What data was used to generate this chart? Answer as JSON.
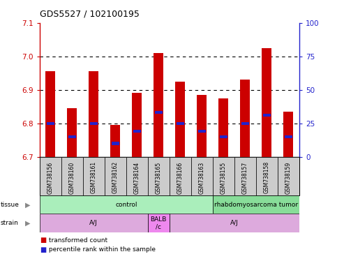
{
  "title": "GDS5527 / 102100195",
  "samples": [
    "GSM738156",
    "GSM738160",
    "GSM738161",
    "GSM738162",
    "GSM738164",
    "GSM738165",
    "GSM738166",
    "GSM738163",
    "GSM738155",
    "GSM738157",
    "GSM738158",
    "GSM738159"
  ],
  "transformed_count": [
    6.955,
    6.845,
    6.955,
    6.795,
    6.89,
    7.01,
    6.925,
    6.885,
    6.875,
    6.93,
    7.025,
    6.835
  ],
  "percentile_rank": [
    25.0,
    15.0,
    25.0,
    10.0,
    19.0,
    33.0,
    25.0,
    19.0,
    15.0,
    25.0,
    31.0,
    15.0
  ],
  "bar_base": 6.7,
  "ylim_left": [
    6.7,
    7.1
  ],
  "ylim_right": [
    0,
    100
  ],
  "yticks_left": [
    6.7,
    6.8,
    6.9,
    7.0,
    7.1
  ],
  "yticks_right": [
    0,
    25,
    50,
    75,
    100
  ],
  "red_color": "#cc0000",
  "blue_color": "#2222cc",
  "tissue_groups": [
    {
      "label": "control",
      "start": 0,
      "end": 8,
      "color": "#aaeebb"
    },
    {
      "label": "rhabdomyosarcoma tumor",
      "start": 8,
      "end": 12,
      "color": "#88dd99"
    }
  ],
  "strain_groups": [
    {
      "label": "A/J",
      "start": 0,
      "end": 5,
      "color": "#ddaadd"
    },
    {
      "label": "BALB\n/c",
      "start": 5,
      "end": 6,
      "color": "#ee88ee"
    },
    {
      "label": "A/J",
      "start": 6,
      "end": 12,
      "color": "#ddaadd"
    }
  ],
  "tick_label_bg": "#cccccc",
  "bar_width": 0.45,
  "blue_bar_width": 0.35
}
